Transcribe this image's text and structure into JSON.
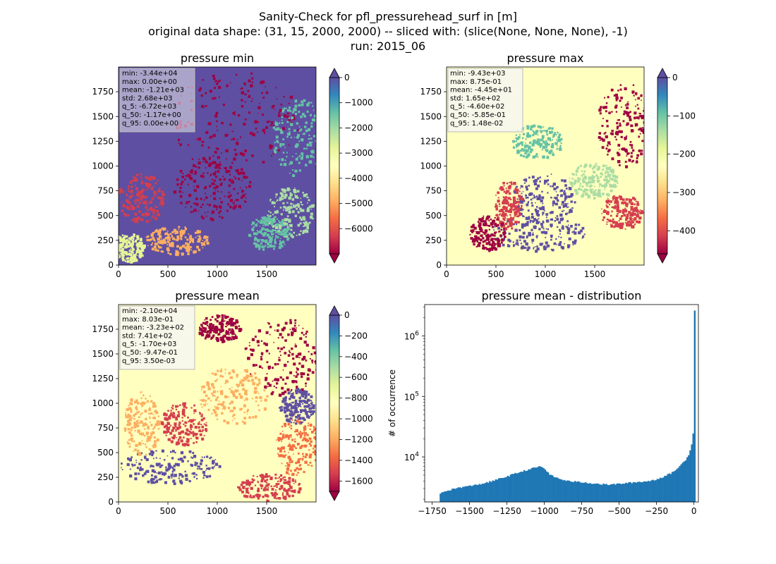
{
  "suptitle": {
    "line1": "Sanity-Check for pfl_pressurehead_surf in [m]",
    "line2": "original data shape: (31, 15, 2000, 2000) -- sliced with: (slice(None, None, None), -1)",
    "line3": "run: 2015_06"
  },
  "chart_data": [
    {
      "type": "heatmap",
      "title": "pressure min",
      "colormap": "Spectral",
      "xlim": [
        0,
        2000
      ],
      "ylim": [
        0,
        2000
      ],
      "xticks": [
        "0",
        "500",
        "1000",
        "1500"
      ],
      "yticks": [
        "0",
        "250",
        "500",
        "750",
        "1000",
        "1250",
        "1500",
        "1750"
      ],
      "colorbar": {
        "range": [
          -7000,
          0
        ],
        "extend": "both",
        "ticks": [
          "0",
          "−1000",
          "−2000",
          "−3000",
          "−4000",
          "−5000",
          "−6000"
        ]
      },
      "stats": [
        "min: -3.44e+04",
        "max: 0.00e+00",
        "mean: -1.21e+03",
        "std: 2.68e+03",
        "q_5: -6.72e+03",
        "q_50: -1.17e+00",
        "q_95: 0.00e+00"
      ]
    },
    {
      "type": "heatmap",
      "title": "pressure max",
      "colormap": "Spectral",
      "xlim": [
        0,
        2000
      ],
      "ylim": [
        0,
        2000
      ],
      "xticks": [
        "0",
        "500",
        "1000",
        "1500"
      ],
      "yticks": [
        "0",
        "250",
        "500",
        "750",
        "1000",
        "1250",
        "1500",
        "1750"
      ],
      "colorbar": {
        "range": [
          -460,
          0
        ],
        "extend": "both",
        "ticks": [
          "0",
          "−100",
          "−200",
          "−300",
          "−400"
        ]
      },
      "stats": [
        "min: -9.43e+03",
        "max: 8.75e-01",
        "mean: -4.45e+01",
        "std: 1.65e+02",
        "q_5: -4.60e+02",
        "q_50: -5.85e-01",
        "q_95: 1.48e-02"
      ]
    },
    {
      "type": "heatmap",
      "title": "pressure mean",
      "colormap": "Spectral",
      "xlim": [
        0,
        2000
      ],
      "ylim": [
        0,
        2000
      ],
      "xticks": [
        "0",
        "500",
        "1000",
        "1500"
      ],
      "yticks": [
        "0",
        "250",
        "500",
        "750",
        "1000",
        "1250",
        "1500",
        "1750"
      ],
      "colorbar": {
        "range": [
          -1700,
          0
        ],
        "extend": "both",
        "ticks": [
          "0",
          "−200",
          "−400",
          "−600",
          "−800",
          "−1000",
          "−1200",
          "−1400",
          "−1600"
        ]
      },
      "stats": [
        "min: -2.10e+04",
        "max: 8.03e-01",
        "mean: -3.23e+02",
        "std: 7.41e+02",
        "q_5: -1.70e+03",
        "q_50: -9.47e-01",
        "q_95: 3.50e-03"
      ]
    },
    {
      "type": "bar",
      "title": "pressure mean - distribution",
      "ylabel": "# of occurrence",
      "yscale": "log",
      "xlim": [
        -1800,
        30
      ],
      "ylim": [
        1800,
        3300000
      ],
      "xticks": [
        "−1750",
        "−1500",
        "−1250",
        "−1000",
        "−750",
        "−500",
        "−250",
        "0"
      ],
      "yticks": [
        {
          "value": 10000,
          "base": "10",
          "exp": "4"
        },
        {
          "value": 100000,
          "base": "10",
          "exp": "5"
        },
        {
          "value": 1000000,
          "base": "10",
          "exp": "6"
        }
      ],
      "color": "#1f77b4",
      "bin_width": 10,
      "series": [
        {
          "x": [
            -1700,
            -1650,
            -1600,
            -1550,
            -1500,
            -1450,
            -1400,
            -1350,
            -1300,
            -1250,
            -1200,
            -1150,
            -1100,
            -1050,
            -1025,
            -1000,
            -975,
            -950,
            -900,
            -850,
            -800,
            -750,
            -700,
            -650,
            -600,
            -550,
            -500,
            -450,
            -400,
            -350,
            -300,
            -250,
            -200,
            -150,
            -100,
            -60,
            -40,
            -30,
            -20,
            -15,
            -10,
            -5,
            0
          ],
          "y": [
            2500,
            2800,
            3000,
            3200,
            3300,
            3500,
            3700,
            4000,
            4400,
            4800,
            5300,
            5800,
            6300,
            6800,
            7000,
            6200,
            5300,
            4800,
            4300,
            4000,
            3900,
            3800,
            3700,
            3600,
            3500,
            3500,
            3600,
            3700,
            3800,
            3900,
            4000,
            4300,
            4800,
            5500,
            7000,
            9000,
            11000,
            13000,
            16000,
            20000,
            25000,
            35000,
            2600000
          ]
        }
      ]
    }
  ]
}
